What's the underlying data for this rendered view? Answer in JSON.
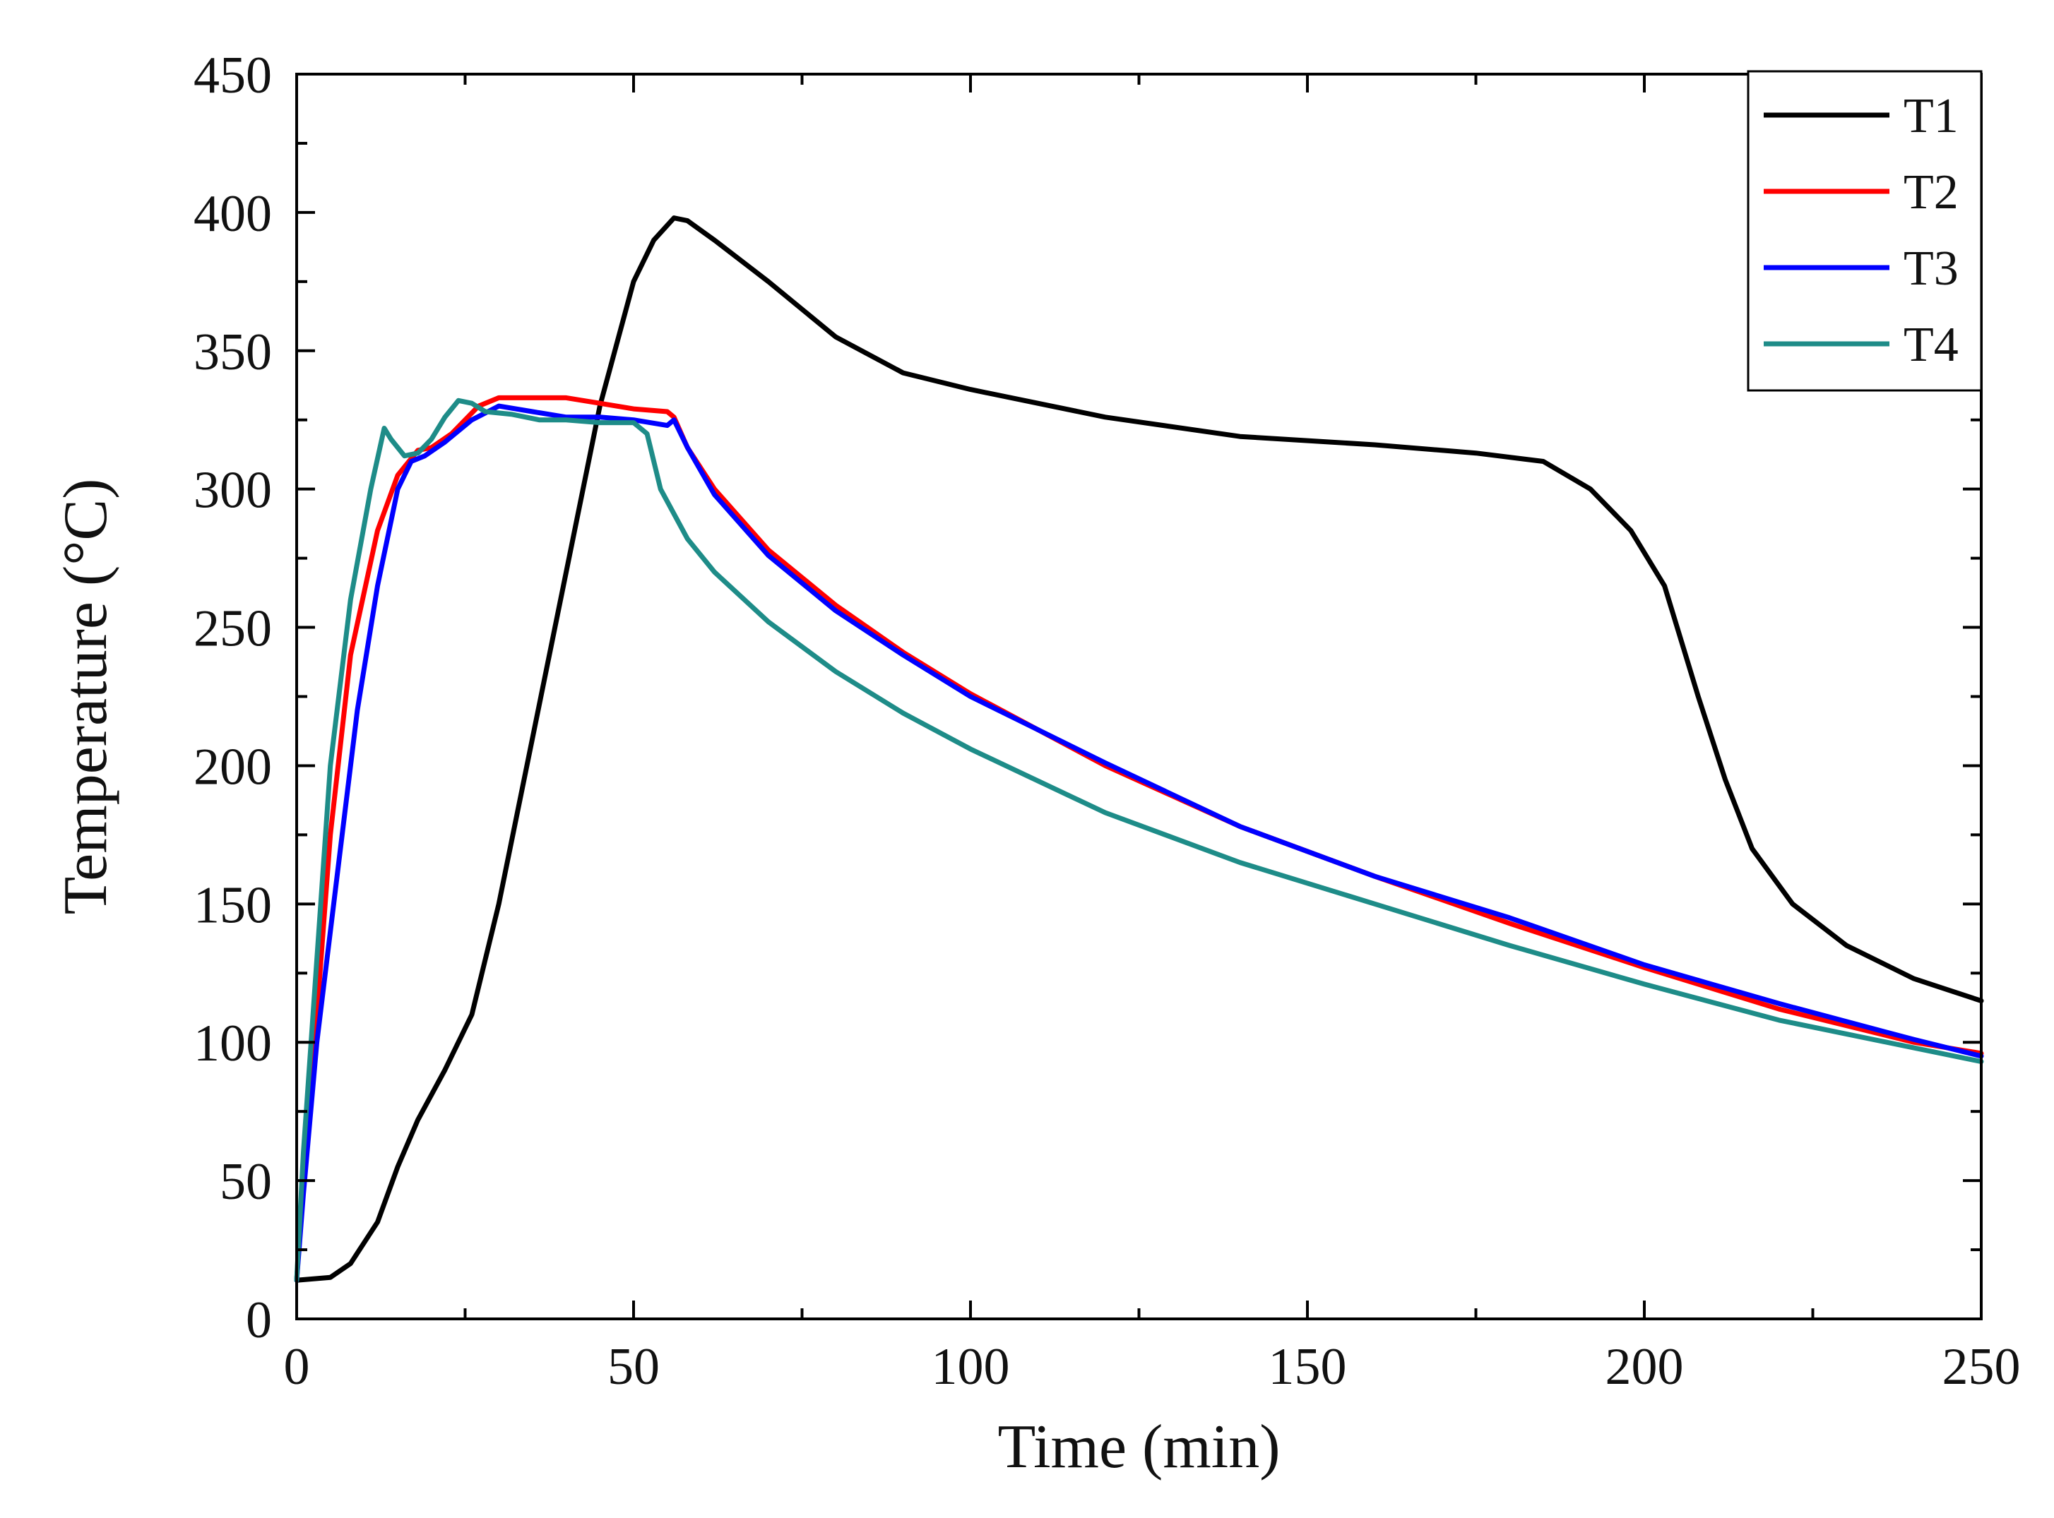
{
  "chart_data": {
    "type": "line",
    "title": "",
    "xlabel": "Time (min)",
    "ylabel": "Temperature (°C)",
    "xlim": [
      0,
      250
    ],
    "ylim": [
      0,
      450
    ],
    "xticks": [
      0,
      50,
      100,
      150,
      200,
      250
    ],
    "yticks": [
      0,
      50,
      100,
      150,
      200,
      250,
      300,
      350,
      400,
      450
    ],
    "grid": false,
    "legend_position": "top-right",
    "series": [
      {
        "name": "T1",
        "color": "#000000",
        "points": [
          [
            0,
            14
          ],
          [
            5,
            15
          ],
          [
            8,
            20
          ],
          [
            12,
            35
          ],
          [
            15,
            55
          ],
          [
            18,
            72
          ],
          [
            22,
            90
          ],
          [
            26,
            110
          ],
          [
            30,
            150
          ],
          [
            35,
            210
          ],
          [
            40,
            270
          ],
          [
            45,
            330
          ],
          [
            50,
            375
          ],
          [
            53,
            390
          ],
          [
            56,
            398
          ],
          [
            58,
            397
          ],
          [
            62,
            390
          ],
          [
            70,
            375
          ],
          [
            80,
            355
          ],
          [
            90,
            342
          ],
          [
            100,
            336
          ],
          [
            120,
            326
          ],
          [
            140,
            319
          ],
          [
            160,
            316
          ],
          [
            175,
            313
          ],
          [
            185,
            310
          ],
          [
            192,
            300
          ],
          [
            198,
            285
          ],
          [
            203,
            265
          ],
          [
            208,
            225
          ],
          [
            212,
            195
          ],
          [
            216,
            170
          ],
          [
            222,
            150
          ],
          [
            230,
            135
          ],
          [
            240,
            123
          ],
          [
            250,
            115
          ]
        ]
      },
      {
        "name": "T2",
        "color": "#ff0000",
        "points": [
          [
            0,
            14
          ],
          [
            1,
            50
          ],
          [
            3,
            110
          ],
          [
            5,
            175
          ],
          [
            8,
            240
          ],
          [
            12,
            285
          ],
          [
            15,
            305
          ],
          [
            18,
            314
          ],
          [
            20,
            315
          ],
          [
            23,
            320
          ],
          [
            27,
            330
          ],
          [
            30,
            333
          ],
          [
            35,
            333
          ],
          [
            40,
            333
          ],
          [
            45,
            331
          ],
          [
            50,
            329
          ],
          [
            55,
            328
          ],
          [
            56,
            326
          ],
          [
            58,
            315
          ],
          [
            62,
            300
          ],
          [
            70,
            278
          ],
          [
            80,
            258
          ],
          [
            90,
            241
          ],
          [
            100,
            226
          ],
          [
            120,
            200
          ],
          [
            140,
            178
          ],
          [
            160,
            160
          ],
          [
            180,
            143
          ],
          [
            200,
            127
          ],
          [
            220,
            112
          ],
          [
            240,
            100
          ],
          [
            250,
            96
          ]
        ]
      },
      {
        "name": "T3",
        "color": "#0000ff",
        "points": [
          [
            0,
            14
          ],
          [
            1,
            45
          ],
          [
            3,
            100
          ],
          [
            6,
            160
          ],
          [
            9,
            220
          ],
          [
            12,
            265
          ],
          [
            15,
            300
          ],
          [
            17,
            310
          ],
          [
            19,
            312
          ],
          [
            22,
            317
          ],
          [
            26,
            325
          ],
          [
            30,
            330
          ],
          [
            35,
            328
          ],
          [
            40,
            326
          ],
          [
            45,
            326
          ],
          [
            50,
            325
          ],
          [
            55,
            323
          ],
          [
            56,
            325
          ],
          [
            58,
            315
          ],
          [
            62,
            298
          ],
          [
            70,
            276
          ],
          [
            80,
            256
          ],
          [
            90,
            240
          ],
          [
            100,
            225
          ],
          [
            120,
            201
          ],
          [
            140,
            178
          ],
          [
            160,
            160
          ],
          [
            180,
            145
          ],
          [
            200,
            128
          ],
          [
            220,
            114
          ],
          [
            240,
            101
          ],
          [
            250,
            95
          ]
        ]
      },
      {
        "name": "T4",
        "color": "#1e8c88",
        "points": [
          [
            0,
            14
          ],
          [
            1,
            60
          ],
          [
            3,
            130
          ],
          [
            5,
            200
          ],
          [
            8,
            260
          ],
          [
            11,
            300
          ],
          [
            13,
            322
          ],
          [
            14,
            318
          ],
          [
            16,
            312
          ],
          [
            18,
            313
          ],
          [
            20,
            318
          ],
          [
            22,
            326
          ],
          [
            24,
            332
          ],
          [
            26,
            331
          ],
          [
            28,
            328
          ],
          [
            32,
            327
          ],
          [
            36,
            325
          ],
          [
            40,
            325
          ],
          [
            45,
            324
          ],
          [
            50,
            324
          ],
          [
            52,
            320
          ],
          [
            54,
            300
          ],
          [
            58,
            282
          ],
          [
            62,
            270
          ],
          [
            70,
            252
          ],
          [
            80,
            234
          ],
          [
            90,
            219
          ],
          [
            100,
            206
          ],
          [
            120,
            183
          ],
          [
            140,
            165
          ],
          [
            160,
            150
          ],
          [
            180,
            135
          ],
          [
            200,
            121
          ],
          [
            220,
            108
          ],
          [
            240,
            98
          ],
          [
            250,
            93
          ]
        ]
      }
    ]
  }
}
